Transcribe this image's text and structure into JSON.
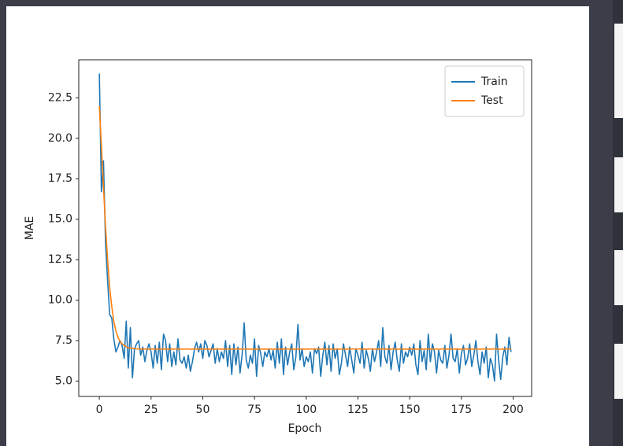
{
  "chart_data": {
    "type": "line",
    "xlabel": "Epoch",
    "ylabel": "MAE",
    "x": [
      0,
      1,
      2,
      3,
      4,
      5,
      6,
      7,
      8,
      9,
      10,
      11,
      12,
      13,
      14,
      15,
      16,
      17,
      18,
      19,
      20,
      21,
      22,
      23,
      24,
      25,
      26,
      27,
      28,
      29,
      30,
      31,
      32,
      33,
      34,
      35,
      36,
      37,
      38,
      39,
      40,
      41,
      42,
      43,
      44,
      45,
      46,
      47,
      48,
      49,
      50,
      51,
      52,
      53,
      54,
      55,
      56,
      57,
      58,
      59,
      60,
      61,
      62,
      63,
      64,
      65,
      66,
      67,
      68,
      69,
      70,
      71,
      72,
      73,
      74,
      75,
      76,
      77,
      78,
      79,
      80,
      81,
      82,
      83,
      84,
      85,
      86,
      87,
      88,
      89,
      90,
      91,
      92,
      93,
      94,
      95,
      96,
      97,
      98,
      99,
      100,
      101,
      102,
      103,
      104,
      105,
      106,
      107,
      108,
      109,
      110,
      111,
      112,
      113,
      114,
      115,
      116,
      117,
      118,
      119,
      120,
      121,
      122,
      123,
      124,
      125,
      126,
      127,
      128,
      129,
      130,
      131,
      132,
      133,
      134,
      135,
      136,
      137,
      138,
      139,
      140,
      141,
      142,
      143,
      144,
      145,
      146,
      147,
      148,
      149,
      150,
      151,
      152,
      153,
      154,
      155,
      156,
      157,
      158,
      159,
      160,
      161,
      162,
      163,
      164,
      165,
      166,
      167,
      168,
      169,
      170,
      171,
      172,
      173,
      174,
      175,
      176,
      177,
      178,
      179,
      180,
      181,
      182,
      183,
      184,
      185,
      186,
      187,
      188,
      189,
      190,
      191,
      192,
      193,
      194,
      195,
      196,
      197,
      198,
      199
    ],
    "series": [
      {
        "name": "Train",
        "color": "#1f77b4",
        "values": [
          24.0,
          16.7,
          18.6,
          13.5,
          11.2,
          9.1,
          8.9,
          7.6,
          6.8,
          7.1,
          7.5,
          7.2,
          6.4,
          8.7,
          5.8,
          8.3,
          5.2,
          7.0,
          7.3,
          7.5,
          6.6,
          7.1,
          6.2,
          6.9,
          7.3,
          6.8,
          5.8,
          7.2,
          6.1,
          7.4,
          5.7,
          7.9,
          7.5,
          6.2,
          7.3,
          5.9,
          6.8,
          6.0,
          7.6,
          6.3,
          6.1,
          6.5,
          5.8,
          6.6,
          5.6,
          6.2,
          7.0,
          7.4,
          6.8,
          7.3,
          6.4,
          7.5,
          7.2,
          6.5,
          6.9,
          7.3,
          6.1,
          7.0,
          6.2,
          6.8,
          6.4,
          7.5,
          5.9,
          7.2,
          5.4,
          7.3,
          6.0,
          7.1,
          5.5,
          6.6,
          8.6,
          6.3,
          5.8,
          6.6,
          6.1,
          7.6,
          5.3,
          7.2,
          6.7,
          5.9,
          6.8,
          6.5,
          7.0,
          6.3,
          6.9,
          5.8,
          7.4,
          6.1,
          7.6,
          5.4,
          7.1,
          6.0,
          6.8,
          7.3,
          5.7,
          6.5,
          8.5,
          6.3,
          7.0,
          5.9,
          6.5,
          6.2,
          6.8,
          5.5,
          7.0,
          6.7,
          7.1,
          5.3,
          6.6,
          7.4,
          6.0,
          7.2,
          5.6,
          7.3,
          6.4,
          7.0,
          5.4,
          6.1,
          7.3,
          6.6,
          5.9,
          7.1,
          6.3,
          5.5,
          7.0,
          6.6,
          6.1,
          7.4,
          5.8,
          6.9,
          6.4,
          5.6,
          7.0,
          6.2,
          6.8,
          7.5,
          5.9,
          8.3,
          6.5,
          6.1,
          7.2,
          5.7,
          6.8,
          7.4,
          6.3,
          5.6,
          7.3,
          6.1,
          6.8,
          6.5,
          7.1,
          6.6,
          7.3,
          6.0,
          5.4,
          7.5,
          6.2,
          6.9,
          5.7,
          7.9,
          6.2,
          7.3,
          6.8,
          5.5,
          6.9,
          6.3,
          6.1,
          7.2,
          5.8,
          6.6,
          7.9,
          6.4,
          6.2,
          7.0,
          5.5,
          6.7,
          7.2,
          6.0,
          6.4,
          7.3,
          5.9,
          6.6,
          7.5,
          6.2,
          5.4,
          6.8,
          6.1,
          7.1,
          5.2,
          6.4,
          6.0,
          5.0,
          7.9,
          6.3,
          5.1,
          6.5,
          7.1,
          6.0,
          7.7,
          6.8
        ]
      },
      {
        "name": "Test",
        "color": "#ff7f0e",
        "values": [
          22.0,
          19.5,
          17.0,
          14.5,
          12.5,
          10.8,
          9.6,
          8.7,
          8.1,
          7.7,
          7.45,
          7.3,
          7.2,
          7.12,
          7.07,
          7.04,
          7.02,
          7.0,
          6.99,
          6.98,
          6.98,
          6.97,
          6.99,
          6.98,
          6.96,
          6.98,
          6.99,
          6.97,
          6.98,
          6.97,
          6.98,
          6.99,
          6.97,
          6.98,
          6.96,
          6.98,
          6.97,
          6.99,
          6.98,
          6.97,
          6.98,
          6.97,
          6.99,
          6.98,
          6.96,
          6.98,
          6.99,
          6.97,
          6.98,
          6.97,
          6.98,
          6.99,
          6.97,
          6.98,
          6.96,
          6.98,
          6.97,
          6.99,
          6.98,
          6.97,
          6.98,
          6.97,
          6.99,
          6.98,
          6.96,
          6.98,
          6.99,
          6.97,
          6.98,
          6.97,
          6.98,
          6.99,
          6.97,
          6.98,
          6.96,
          6.98,
          6.97,
          6.99,
          6.98,
          6.97,
          6.98,
          6.97,
          6.99,
          6.98,
          6.96,
          6.98,
          6.99,
          6.97,
          6.98,
          6.97,
          6.98,
          6.99,
          6.97,
          6.98,
          6.96,
          6.98,
          6.97,
          6.99,
          6.98,
          6.97,
          6.98,
          6.97,
          6.99,
          6.98,
          6.96,
          6.98,
          6.99,
          6.97,
          6.98,
          6.97,
          6.98,
          6.99,
          6.97,
          6.98,
          6.96,
          6.98,
          6.97,
          6.99,
          6.98,
          6.97,
          6.98,
          6.97,
          6.99,
          6.98,
          6.96,
          6.98,
          6.99,
          6.97,
          6.98,
          6.97,
          6.98,
          6.99,
          6.97,
          6.98,
          6.96,
          6.98,
          6.97,
          6.99,
          6.98,
          6.97,
          6.98,
          6.97,
          6.99,
          6.98,
          6.96,
          6.98,
          6.99,
          6.97,
          6.98,
          6.97,
          6.98,
          6.99,
          6.97,
          6.98,
          6.96,
          6.98,
          6.97,
          6.99,
          6.98,
          6.97,
          6.98,
          6.97,
          6.99,
          6.98,
          6.96,
          6.98,
          6.99,
          6.97,
          6.98,
          6.97,
          6.98,
          6.99,
          6.97,
          6.98,
          6.96,
          6.98,
          6.97,
          6.99,
          6.98,
          6.97,
          6.98,
          6.97,
          6.99,
          6.98,
          6.96,
          6.98,
          6.99,
          6.97,
          6.98,
          6.97,
          6.98,
          6.99,
          6.97,
          6.98,
          6.96,
          6.98,
          6.97,
          6.99,
          6.98,
          6.97
        ]
      }
    ],
    "xlim": [
      -9.95,
      208.95
    ],
    "xticks": [
      0,
      25,
      50,
      75,
      100,
      125,
      150,
      175,
      200
    ],
    "ylim": [
      4.05,
      24.85
    ],
    "yticks": [
      {
        "value": 5,
        "label": "5.0"
      },
      7.5,
      {
        "value": 10,
        "label": "10.0"
      },
      12.5,
      {
        "value": 15,
        "label": "15.0"
      },
      17.5,
      {
        "value": 20,
        "label": "20.0"
      },
      22.5
    ],
    "legend": "upper right",
    "grid": false
  }
}
